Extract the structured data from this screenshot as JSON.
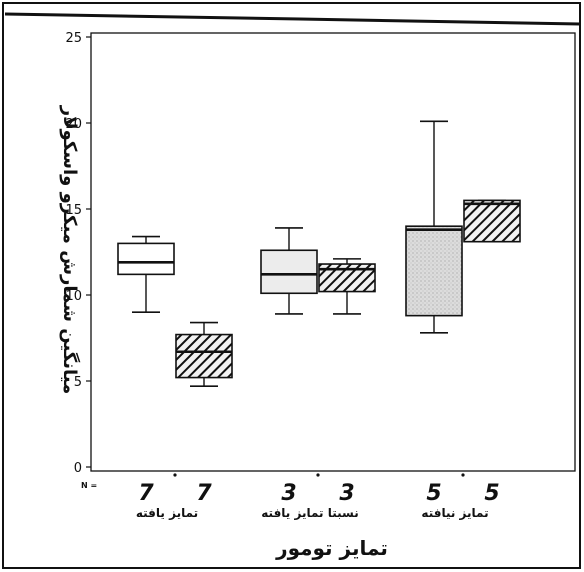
{
  "chart_data": {
    "type": "boxplot",
    "title": "",
    "xlabel": "تمایز تومور",
    "ylabel": "میانگین شمارش میکرو واسکولار",
    "ylim": [
      0,
      25
    ],
    "yticks": [
      0,
      5,
      10,
      15,
      20,
      25
    ],
    "n_label": "N =",
    "grid": false,
    "legend": "none",
    "categories": [
      "تمایز یافته",
      "نسبتا تمایز یافته",
      "تمایز نیافته"
    ],
    "series": [
      {
        "style": "plain",
        "fill": "#ffffff"
      },
      {
        "style": "hatched",
        "fill": "#222222"
      }
    ],
    "boxes": [
      {
        "category": 0,
        "series": 0,
        "n": "7",
        "min": 9.0,
        "q1": 11.2,
        "median": 11.9,
        "q3": 13.0,
        "max": 13.4
      },
      {
        "category": 0,
        "series": 1,
        "n": "7",
        "min": 4.7,
        "q1": 5.2,
        "median": 6.7,
        "q3": 7.7,
        "max": 8.4
      },
      {
        "category": 1,
        "series": 0,
        "n": "3",
        "min": 8.9,
        "q1": 10.1,
        "median": 11.2,
        "q3": 12.6,
        "max": 13.9
      },
      {
        "category": 1,
        "series": 1,
        "n": "3",
        "min": 8.9,
        "q1": 10.2,
        "median": 11.5,
        "q3": 11.8,
        "max": 12.1
      },
      {
        "category": 2,
        "series": 0,
        "n": "5",
        "min": 7.8,
        "q1": 8.8,
        "median": 13.8,
        "q3": 14.0,
        "max": 20.1
      },
      {
        "category": 2,
        "series": 1,
        "n": "5",
        "min": 13.1,
        "q1": 13.1,
        "median": 15.3,
        "q3": 15.5,
        "max": 15.5
      }
    ]
  }
}
